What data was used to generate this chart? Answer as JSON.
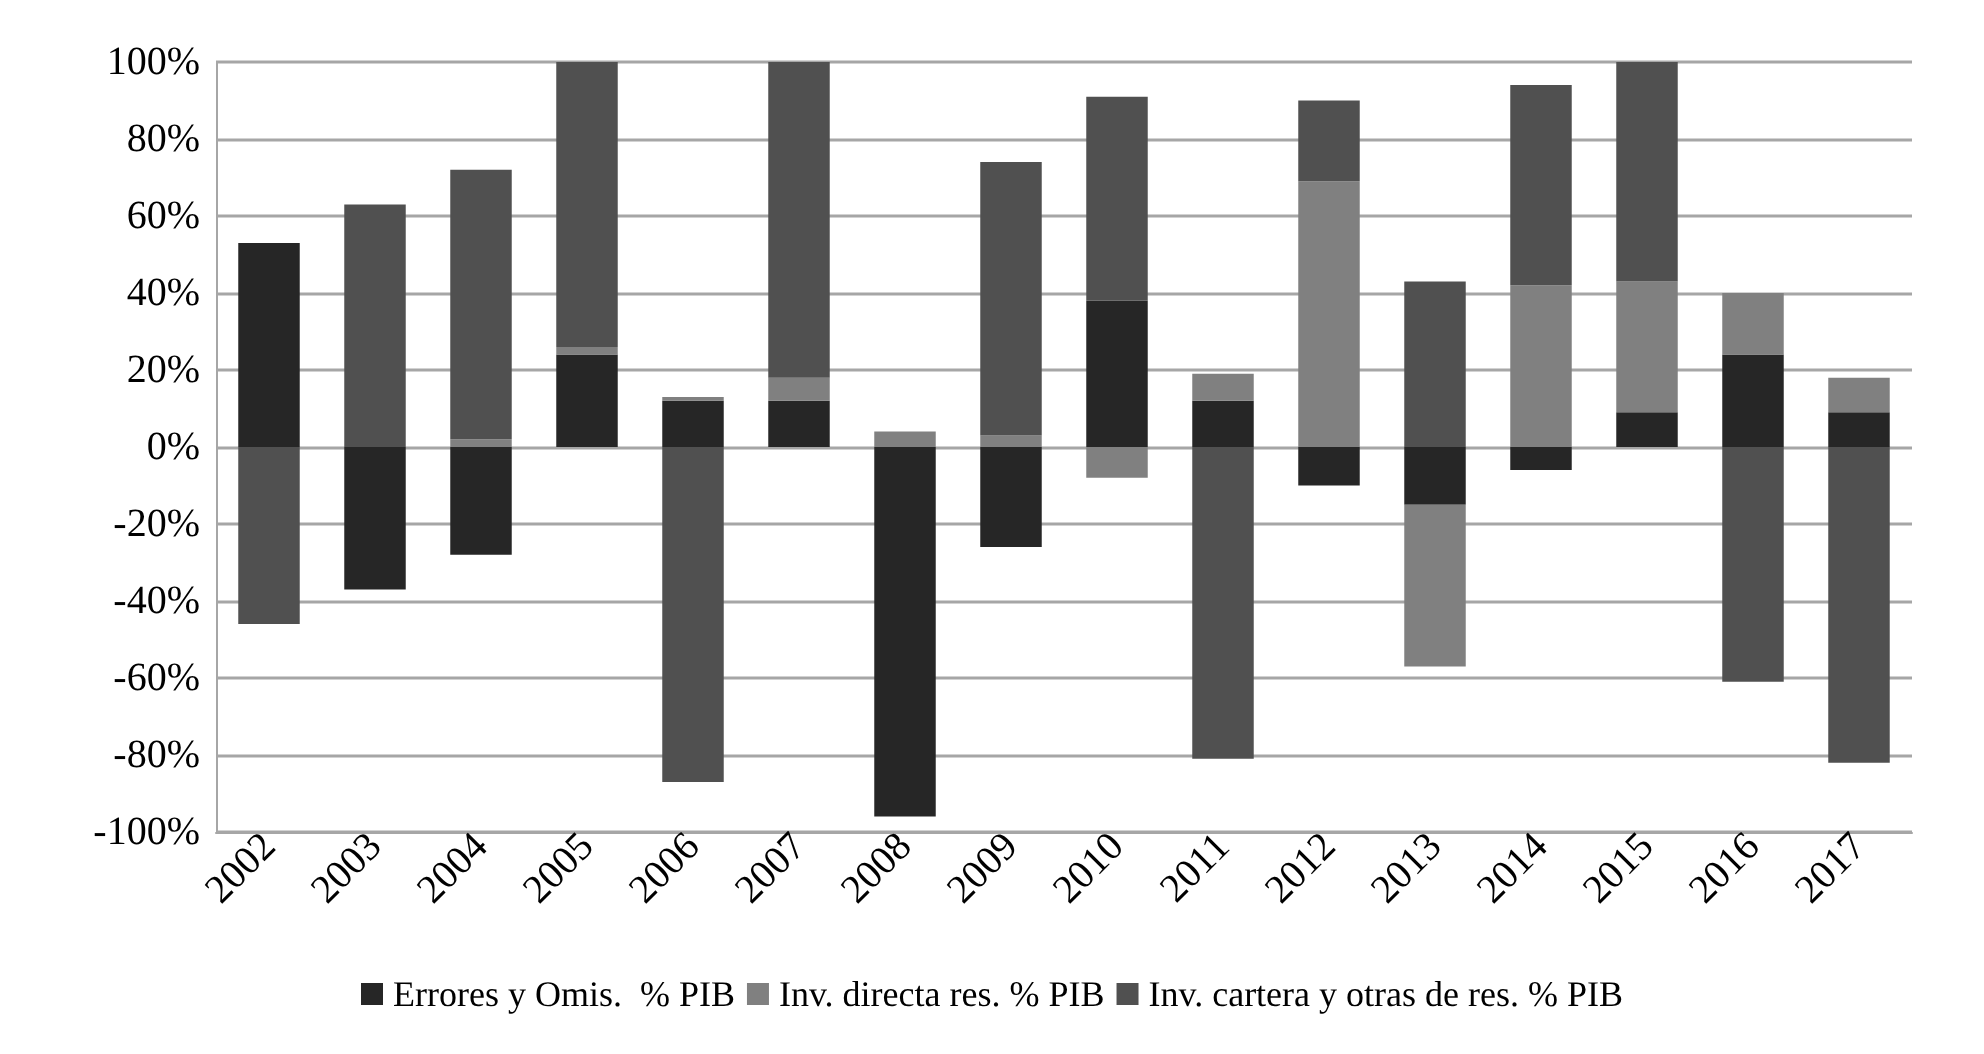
{
  "chart_data": {
    "type": "bar",
    "stacked": true,
    "categories": [
      "2002",
      "2003",
      "2004",
      "2005",
      "2006",
      "2007",
      "2008",
      "2009",
      "2010",
      "2011",
      "2012",
      "2013",
      "2014",
      "2015",
      "2016",
      "2017"
    ],
    "series": [
      {
        "name": "Errores y Omis.  % PIB",
        "color": "#262626",
        "values": [
          53,
          -37,
          -28,
          24,
          12,
          12,
          -96,
          -26,
          38,
          12,
          -10,
          -15,
          -6,
          9,
          24,
          9
        ]
      },
      {
        "name": "Inv. directa res. % PIB",
        "color": "#808080",
        "values": [
          0,
          0,
          2,
          2,
          1,
          6,
          4,
          3,
          -8,
          7,
          69,
          -42,
          42,
          34,
          16,
          9
        ]
      },
      {
        "name": "Inv. cartera y otras de res. % PIB",
        "color": "#505050",
        "values": [
          -46,
          63,
          70,
          74,
          -87,
          82,
          0,
          71,
          53,
          -81,
          21,
          43,
          52,
          57,
          -61,
          -82
        ]
      }
    ],
    "ylim": [
      -100,
      100
    ],
    "yticks": [
      {
        "value": -100,
        "label": "-100%"
      },
      {
        "value": -80,
        "label": "-80%"
      },
      {
        "value": -60,
        "label": "-60%"
      },
      {
        "value": -40,
        "label": "-40%"
      },
      {
        "value": -20,
        "label": "-20%"
      },
      {
        "value": 0,
        "label": "0%"
      },
      {
        "value": 20,
        "label": "20%"
      },
      {
        "value": 40,
        "label": "40%"
      },
      {
        "value": 60,
        "label": "60%"
      },
      {
        "value": 80,
        "label": "80%"
      },
      {
        "value": 100,
        "label": "100%"
      }
    ],
    "grid": "y",
    "legend": "bottom"
  }
}
